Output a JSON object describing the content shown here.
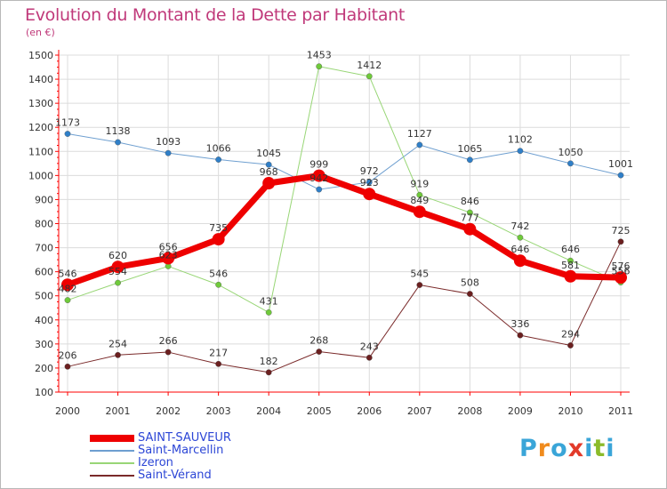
{
  "title": "Evolution du Montant de la Dette par Habitant",
  "subtitle": "(en €)",
  "logo_text": "Proxiti",
  "colors": {
    "title": "#c0397a",
    "axis": "#ff0000",
    "grid": "#dcdcdc",
    "tick_text": "#333333",
    "legend_text": "#2c46d6",
    "logo_letters": [
      "#3aa5d8",
      "#f08b1d",
      "#3aa5d8",
      "#e23a2a",
      "#3aa5d8",
      "#8bbb2a",
      "#3aa5d8"
    ]
  },
  "chart_data": {
    "type": "line",
    "title": "Evolution du Montant de la Dette par Habitant",
    "subtitle": "(en €)",
    "xlabel": "",
    "ylabel": "",
    "x": [
      "2000",
      "2001",
      "2002",
      "2003",
      "2004",
      "2005",
      "2006",
      "2007",
      "2008",
      "2009",
      "2010",
      "2011"
    ],
    "ylim": [
      100,
      1500
    ],
    "yticks": [
      100,
      200,
      300,
      400,
      500,
      600,
      700,
      800,
      900,
      1000,
      1100,
      1200,
      1300,
      1400,
      1500
    ],
    "grid": true,
    "legend_position": "bottom-left",
    "series": [
      {
        "name": "Saint-Marcellin",
        "color": "#6e9fd0",
        "marker": "#2f7fc8",
        "width": 1,
        "values": [
          1173,
          1138,
          1093,
          1066,
          1045,
          942,
          972,
          1127,
          1065,
          1102,
          1050,
          1001
        ],
        "labels": [
          "1173",
          "1138",
          "1093",
          "1066",
          "1045",
          "942",
          "972",
          "1127",
          "1065",
          "1102",
          "1050",
          "1001"
        ]
      },
      {
        "name": "Izeron",
        "color": "#98d676",
        "marker": "#6fca3a",
        "width": 1,
        "values": [
          482,
          554,
          623,
          546,
          431,
          1453,
          1412,
          919,
          846,
          742,
          646,
          556
        ],
        "labels": [
          "482",
          "554",
          "623",
          "546",
          "431",
          "1453",
          "1412",
          "919",
          "846",
          "742",
          "646",
          "556"
        ]
      },
      {
        "name": "Saint-Vérand",
        "color": "#7a2a2a",
        "marker": "#6b1f1f",
        "width": 1,
        "values": [
          206,
          254,
          266,
          217,
          182,
          268,
          243,
          545,
          508,
          336,
          294,
          725
        ],
        "labels": [
          "206",
          "254",
          "266",
          "217",
          "182",
          "268",
          "243",
          "545",
          "508",
          "336",
          "294",
          "725"
        ]
      },
      {
        "name": "SAINT-SAUVEUR",
        "color": "#ee0000",
        "marker": "#ee0000",
        "width": 7,
        "values": [
          546,
          620,
          656,
          735,
          968,
          999,
          923,
          849,
          777,
          646,
          581,
          576
        ],
        "labels": [
          "546",
          "620",
          "656",
          "735",
          "968",
          "999",
          "923",
          "849",
          "777",
          "646",
          "581",
          "576"
        ]
      }
    ]
  },
  "legend": [
    {
      "label": "SAINT-SAUVEUR",
      "color": "#ee0000",
      "thickness": 8
    },
    {
      "label": "Saint-Marcellin",
      "color": "#6e9fd0",
      "thickness": 2
    },
    {
      "label": "Izeron",
      "color": "#98d676",
      "thickness": 2
    },
    {
      "label": "Saint-Vérand",
      "color": "#7a2a2a",
      "thickness": 2
    }
  ]
}
